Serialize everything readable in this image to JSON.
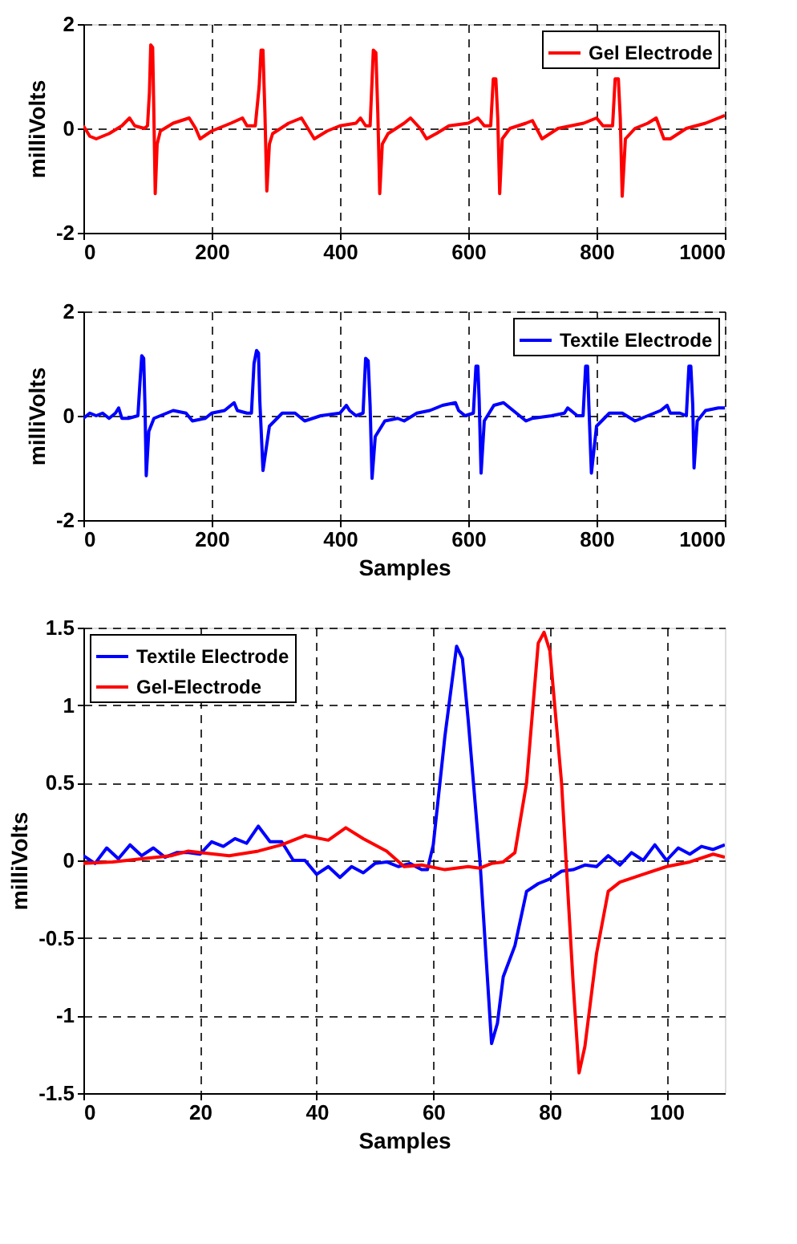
{
  "chart_data": [
    {
      "type": "line",
      "ylabel": "milliVolts",
      "xlim": [
        0,
        1000
      ],
      "ylim": [
        -2,
        2
      ],
      "xticks": [
        0,
        200,
        400,
        600,
        800,
        1000
      ],
      "yticks": [
        -2,
        0,
        2
      ],
      "grid": true,
      "legend": "top right",
      "line_style": "solid",
      "series": [
        {
          "name": "Gel Electrode",
          "color": "#ff0000",
          "x": [
            0,
            10,
            20,
            40,
            60,
            72,
            80,
            95,
            100,
            103,
            105,
            108,
            110,
            112,
            115,
            120,
            140,
            165,
            175,
            182,
            200,
            230,
            248,
            255,
            268,
            274,
            277,
            280,
            283,
            286,
            290,
            295,
            320,
            340,
            350,
            360,
            380,
            400,
            425,
            432,
            440,
            447,
            452,
            456,
            459,
            462,
            466,
            475,
            500,
            510,
            525,
            535,
            550,
            570,
            600,
            615,
            625,
            635,
            639,
            643,
            646,
            649,
            653,
            665,
            690,
            700,
            715,
            740,
            780,
            800,
            810,
            825,
            829,
            834,
            837,
            840,
            845,
            860,
            880,
            893,
            905,
            915,
            940,
            970,
            1000
          ],
          "values": [
            0.05,
            -0.15,
            -0.2,
            -0.1,
            0.05,
            0.2,
            0.05,
            0.0,
            0.05,
            0.7,
            1.6,
            1.55,
            0.2,
            -1.25,
            -0.3,
            -0.05,
            0.1,
            0.2,
            0.0,
            -0.2,
            -0.05,
            0.1,
            0.2,
            0.05,
            0.05,
            0.8,
            1.5,
            1.5,
            0.3,
            -1.2,
            -0.3,
            -0.1,
            0.1,
            0.2,
            0.0,
            -0.2,
            -0.05,
            0.05,
            0.1,
            0.2,
            0.05,
            0.05,
            1.5,
            1.45,
            0.3,
            -1.25,
            -0.3,
            -0.1,
            0.1,
            0.2,
            0.0,
            -0.2,
            -0.1,
            0.05,
            0.1,
            0.2,
            0.05,
            0.05,
            0.95,
            0.95,
            0.2,
            -1.25,
            -0.2,
            0.0,
            0.1,
            0.15,
            -0.2,
            0.0,
            0.1,
            0.2,
            0.05,
            0.05,
            0.95,
            0.95,
            0.2,
            -1.3,
            -0.2,
            0.0,
            0.1,
            0.2,
            -0.2,
            -0.2,
            0.0,
            0.1,
            0.25
          ]
        }
      ]
    },
    {
      "type": "line",
      "xlabel": "Samples",
      "ylabel": "milliVolts",
      "xlim": [
        0,
        1000
      ],
      "ylim": [
        -2,
        2
      ],
      "xticks": [
        0,
        200,
        400,
        600,
        800,
        1000
      ],
      "yticks": [
        -2,
        0,
        2
      ],
      "grid": true,
      "legend": "top right",
      "line_style": "solid",
      "series": [
        {
          "name": "Textile Electrode",
          "color": "#0000ff",
          "x": [
            0,
            10,
            20,
            30,
            40,
            50,
            55,
            60,
            70,
            85,
            88,
            91,
            94,
            96,
            98,
            102,
            110,
            130,
            140,
            160,
            170,
            190,
            200,
            220,
            235,
            240,
            255,
            262,
            266,
            270,
            273,
            275,
            280,
            290,
            310,
            330,
            345,
            370,
            400,
            410,
            415,
            425,
            436,
            440,
            444,
            447,
            450,
            455,
            470,
            490,
            500,
            520,
            540,
            560,
            580,
            585,
            595,
            608,
            612,
            615,
            617,
            620,
            625,
            640,
            655,
            670,
            690,
            700,
            730,
            750,
            755,
            770,
            779,
            783,
            786,
            788,
            792,
            800,
            820,
            840,
            860,
            870,
            900,
            910,
            915,
            930,
            940,
            944,
            947,
            950,
            952,
            957,
            970,
            990,
            1000
          ],
          "values": [
            -0.05,
            0.05,
            0.0,
            0.05,
            -0.05,
            0.05,
            0.15,
            -0.05,
            -0.05,
            0.0,
            0.6,
            1.15,
            1.1,
            0.2,
            -1.15,
            -0.3,
            -0.05,
            0.05,
            0.1,
            0.05,
            -0.1,
            -0.05,
            0.05,
            0.1,
            0.25,
            0.1,
            0.05,
            0.05,
            1.0,
            1.25,
            1.2,
            0.3,
            -1.05,
            -0.2,
            0.05,
            0.05,
            -0.1,
            0.0,
            0.05,
            0.2,
            0.1,
            0.0,
            0.05,
            1.1,
            1.05,
            0.2,
            -1.2,
            -0.4,
            -0.1,
            -0.05,
            -0.1,
            0.05,
            0.1,
            0.2,
            0.25,
            0.1,
            0.0,
            0.05,
            0.95,
            0.95,
            0.3,
            -1.1,
            -0.1,
            0.2,
            0.25,
            0.1,
            -0.1,
            -0.05,
            0.0,
            0.05,
            0.15,
            0.0,
            0.0,
            0.95,
            0.95,
            0.2,
            -1.1,
            -0.2,
            0.05,
            0.05,
            -0.1,
            -0.05,
            0.1,
            0.2,
            0.05,
            0.05,
            0.0,
            0.95,
            0.95,
            0.2,
            -1.0,
            -0.1,
            0.1,
            0.15,
            0.15
          ]
        }
      ]
    },
    {
      "type": "line",
      "xlabel": "Samples",
      "ylabel": "milliVolts",
      "xlim": [
        0,
        110
      ],
      "ylim": [
        -1.5,
        1.5
      ],
      "xticks": [
        0,
        20,
        40,
        60,
        80,
        100
      ],
      "yticks": [
        -1.5,
        -1,
        -0.5,
        0,
        0.5,
        1,
        1.5
      ],
      "grid": true,
      "legend": "top left",
      "line_style": "solid",
      "series": [
        {
          "name": "Textile Electrode",
          "color": "#0000ff",
          "x": [
            0,
            2,
            4,
            6,
            8,
            10,
            12,
            14,
            16,
            18,
            20,
            22,
            24,
            26,
            28,
            30,
            32,
            34,
            36,
            38,
            40,
            42,
            44,
            46,
            48,
            50,
            52,
            54,
            56,
            58,
            59,
            60,
            62,
            64,
            65,
            66,
            68,
            70,
            71,
            72,
            74,
            76,
            78,
            80,
            82,
            84,
            86,
            88,
            90,
            92,
            94,
            96,
            98,
            100,
            102,
            104,
            106,
            108,
            110
          ],
          "values": [
            0.03,
            -0.02,
            0.08,
            0.01,
            0.1,
            0.03,
            0.08,
            0.02,
            0.05,
            0.05,
            0.04,
            0.12,
            0.09,
            0.14,
            0.11,
            0.22,
            0.12,
            0.12,
            0.0,
            0.0,
            -0.09,
            -0.04,
            -0.11,
            -0.04,
            -0.08,
            -0.02,
            -0.01,
            -0.04,
            -0.02,
            -0.06,
            -0.06,
            0.1,
            0.8,
            1.38,
            1.3,
            0.9,
            0.0,
            -1.18,
            -1.05,
            -0.75,
            -0.55,
            -0.2,
            -0.15,
            -0.12,
            -0.07,
            -0.06,
            -0.03,
            -0.04,
            0.03,
            -0.03,
            0.05,
            0.0,
            0.1,
            0.0,
            0.08,
            0.04,
            0.09,
            0.07,
            0.1
          ]
        },
        {
          "name": "Gel-Electrode",
          "color": "#ff0000",
          "x": [
            0,
            5,
            10,
            15,
            18,
            20,
            25,
            30,
            34,
            38,
            42,
            45,
            48,
            52,
            55,
            58,
            62,
            66,
            68,
            70,
            72,
            74,
            76,
            78,
            79,
            80,
            82,
            84,
            85,
            86,
            88,
            90,
            92,
            96,
            100,
            104,
            108,
            110
          ],
          "values": [
            -0.02,
            -0.01,
            0.01,
            0.03,
            0.06,
            0.05,
            0.03,
            0.06,
            0.1,
            0.16,
            0.13,
            0.21,
            0.14,
            0.06,
            -0.04,
            -0.03,
            -0.06,
            -0.04,
            -0.05,
            -0.02,
            -0.01,
            0.05,
            0.5,
            1.4,
            1.47,
            1.35,
            0.5,
            -0.8,
            -1.37,
            -1.2,
            -0.6,
            -0.2,
            -0.14,
            -0.09,
            -0.04,
            -0.01,
            0.04,
            0.02
          ]
        }
      ]
    }
  ]
}
